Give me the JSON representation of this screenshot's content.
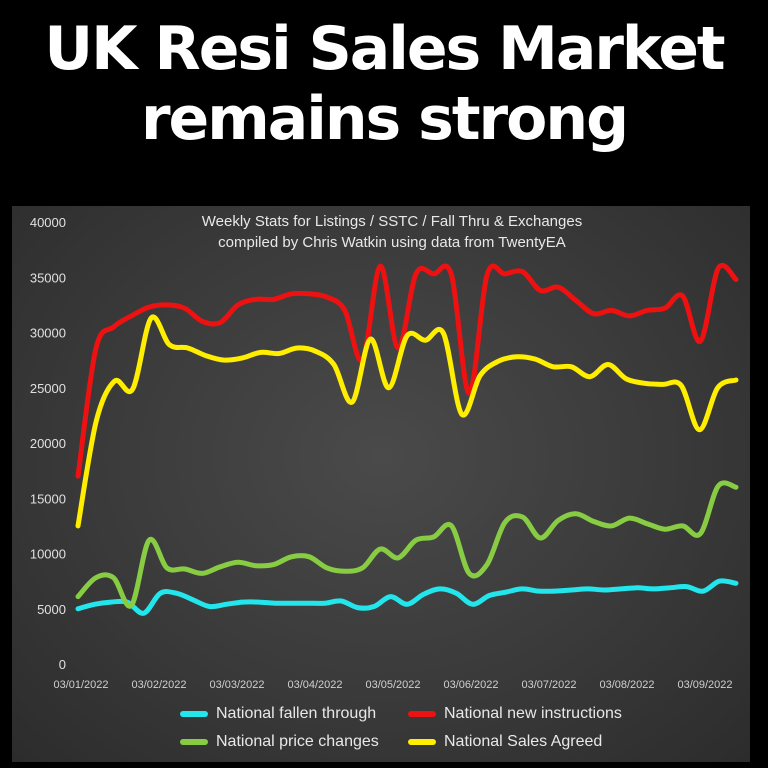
{
  "headline": {
    "line1": "UK Resi Sales Market",
    "line2": "remains strong"
  },
  "chart_data": {
    "type": "line",
    "title": "Weekly Stats for Listings / SSTC / Fall Thru & Exchanges",
    "subtitle": "compiled by Chris Watkin using data from TwentyEA",
    "xlabel": "",
    "ylabel": "",
    "ylim": [
      0,
      40000
    ],
    "yticks": [
      0,
      5000,
      10000,
      15000,
      20000,
      25000,
      30000,
      35000,
      40000
    ],
    "ytick_labels": [
      "0",
      "5000",
      "10000",
      "15000",
      "20000",
      "25000",
      "30000",
      "35000",
      "40000"
    ],
    "xtick_labels": [
      "03/01/2022",
      "03/02/2022",
      "03/03/2022",
      "03/04/2022",
      "03/05/2022",
      "03/06/2022",
      "03/07/2022",
      "03/08/2022",
      "03/09/2022"
    ],
    "x_start": "03/01/2022",
    "x_end": "10/09/2022",
    "x_interval": "weekly",
    "grid": false,
    "legend_position": "bottom",
    "series": [
      {
        "name": "National fallen through",
        "color": "#22e6ec",
        "values": [
          5000,
          5400,
          5600,
          5600,
          4600,
          6400,
          6400,
          5800,
          5200,
          5400,
          5600,
          5600,
          5500,
          5500,
          5500,
          5500,
          5700,
          5100,
          5200,
          6100,
          5400,
          6300,
          6800,
          6400,
          5400,
          6200,
          6500,
          6800,
          6600,
          6600,
          6700,
          6800,
          6700,
          6800,
          6900,
          6800,
          6900,
          7000,
          6600,
          7500,
          7300
        ]
      },
      {
        "name": "National new instructions",
        "color": "#ee1111",
        "values": [
          17000,
          28500,
          30500,
          31500,
          32300,
          32500,
          32200,
          31000,
          30900,
          32500,
          33000,
          33000,
          33500,
          33500,
          33200,
          32000,
          27500,
          36000,
          28600,
          35300,
          35300,
          35200,
          24500,
          35200,
          35300,
          35500,
          33800,
          34100,
          32900,
          31700,
          32000,
          31500,
          32000,
          32200,
          33300,
          29200,
          35800,
          34800
        ]
      },
      {
        "name": "National price changes",
        "color": "#88cc44",
        "values": [
          6100,
          7800,
          7800,
          5300,
          11200,
          8700,
          8600,
          8200,
          8800,
          9200,
          8900,
          9000,
          9700,
          9700,
          8700,
          8400,
          8700,
          10400,
          9600,
          11200,
          11500,
          12500,
          8200,
          9000,
          12800,
          13300,
          11400,
          13000,
          13600,
          12900,
          12500,
          13200,
          12700,
          12200,
          12500,
          11800,
          16100,
          16000
        ]
      },
      {
        "name": "National Sales Agreed",
        "color": "#ffee00",
        "values": [
          12500,
          22000,
          25600,
          24900,
          31300,
          28900,
          28600,
          27900,
          27500,
          27700,
          28200,
          28100,
          28600,
          28300,
          27100,
          23700,
          29400,
          25000,
          29700,
          29300,
          29900,
          22600,
          26100,
          27400,
          27800,
          27600,
          26900,
          26900,
          26000,
          27100,
          25800,
          25400,
          25300,
          25200,
          21200,
          25000,
          25700
        ]
      }
    ]
  },
  "legend": {
    "row1": [
      "National fallen through",
      "National new instructions"
    ],
    "row2": [
      "National price changes",
      "National Sales Agreed"
    ]
  }
}
